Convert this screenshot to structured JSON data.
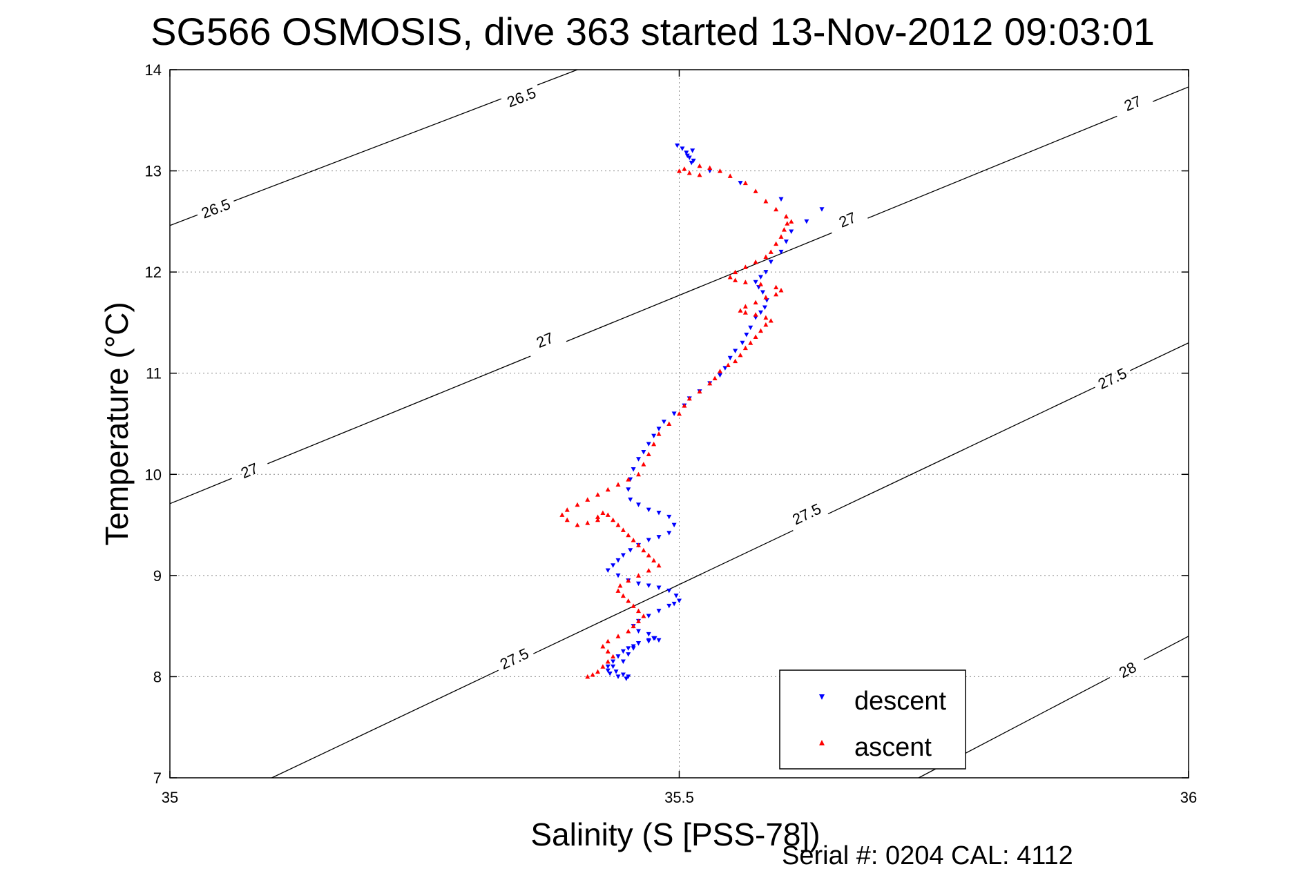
{
  "chart_data": {
    "type": "scatter",
    "title": "SG566 OSMOSIS, dive 363 started 13-Nov-2012 09:03:01",
    "xlabel": "Salinity (S [PSS-78])",
    "ylabel": "Temperature (°C)",
    "xlim": [
      35,
      36
    ],
    "ylim": [
      7,
      14
    ],
    "x_ticks": [
      35,
      35.5,
      36
    ],
    "x_tick_labels": [
      "35",
      "35.5",
      "36"
    ],
    "y_ticks": [
      7,
      8,
      9,
      10,
      11,
      12,
      13,
      14
    ],
    "y_tick_labels": [
      "7",
      "8",
      "9",
      "10",
      "11",
      "12",
      "13",
      "14"
    ],
    "grid": true,
    "legend_position": "bottom-right",
    "contour_colors": "#000000",
    "density_contours": [
      {
        "level": "26.5",
        "points": [
          [
            35.0,
            12.46
          ],
          [
            35.4,
            14.0
          ]
        ],
        "label_positions": [
          [
            35.045,
            12.63
          ],
          [
            35.345,
            13.73
          ]
        ]
      },
      {
        "level": "27",
        "points": [
          [
            35.0,
            9.71
          ],
          [
            36.0,
            13.83
          ]
        ],
        "label_positions": [
          [
            35.078,
            10.04
          ],
          [
            35.368,
            11.33
          ],
          [
            35.665,
            12.52
          ],
          [
            35.945,
            13.67
          ]
        ]
      },
      {
        "level": "27.5",
        "points": [
          [
            35.1,
            7.0
          ],
          [
            36.0,
            11.3
          ]
        ],
        "label_positions": [
          [
            35.338,
            8.18
          ],
          [
            35.625,
            9.61
          ],
          [
            35.925,
            10.95
          ]
        ]
      },
      {
        "level": "28",
        "points": [
          [
            35.735,
            7.0
          ],
          [
            36.0,
            8.4
          ]
        ],
        "label_positions": [
          [
            35.94,
            8.07
          ]
        ]
      }
    ],
    "series": [
      {
        "name": "descent",
        "color": "#0000ff",
        "marker": "triangle-down",
        "x": [
          35.498,
          35.503,
          35.507,
          35.51,
          35.512,
          35.514,
          35.513,
          35.508,
          35.53,
          35.56,
          35.6,
          35.64,
          35.625,
          35.61,
          35.605,
          35.6,
          35.59,
          35.585,
          35.58,
          35.575,
          35.578,
          35.582,
          35.586,
          35.584,
          35.58,
          35.575,
          35.57,
          35.566,
          35.562,
          35.555,
          35.55,
          35.545,
          35.54,
          35.53,
          35.52,
          35.51,
          35.505,
          35.495,
          35.485,
          35.48,
          35.475,
          35.47,
          35.465,
          35.46,
          35.455,
          35.452,
          35.45,
          35.452,
          35.46,
          35.47,
          35.48,
          35.49,
          35.495,
          35.49,
          35.48,
          35.47,
          35.46,
          35.452,
          35.445,
          35.44,
          35.435,
          35.43,
          35.44,
          35.45,
          35.46,
          35.47,
          35.48,
          35.49,
          35.497,
          35.5,
          35.495,
          35.49,
          35.48,
          35.47,
          35.46,
          35.455,
          35.46,
          35.47,
          35.475,
          35.47,
          35.46,
          35.455,
          35.45,
          35.445,
          35.44,
          35.435,
          35.43,
          35.438,
          35.445,
          35.45,
          35.448,
          35.44,
          35.432,
          35.43,
          35.435,
          35.445,
          35.45,
          35.455,
          35.46,
          35.47,
          35.476,
          35.48
        ],
        "y": [
          13.25,
          13.22,
          13.18,
          13.13,
          13.08,
          13.1,
          13.2,
          13.15,
          13.0,
          12.88,
          12.72,
          12.62,
          12.5,
          12.4,
          12.3,
          12.2,
          12.1,
          12.0,
          11.95,
          11.9,
          11.85,
          11.8,
          11.72,
          11.65,
          11.6,
          11.55,
          11.45,
          11.38,
          11.3,
          11.22,
          11.15,
          11.05,
          10.98,
          10.9,
          10.82,
          10.75,
          10.68,
          10.6,
          10.52,
          10.45,
          10.38,
          10.3,
          10.22,
          10.15,
          10.05,
          9.95,
          9.85,
          9.75,
          9.7,
          9.65,
          9.62,
          9.58,
          9.5,
          9.42,
          9.38,
          9.35,
          9.3,
          9.25,
          9.2,
          9.15,
          9.1,
          9.05,
          9.0,
          8.95,
          8.92,
          8.9,
          8.88,
          8.85,
          8.8,
          8.75,
          8.72,
          8.7,
          8.65,
          8.6,
          8.55,
          8.5,
          8.45,
          8.42,
          8.38,
          8.35,
          8.33,
          8.3,
          8.28,
          8.25,
          8.2,
          8.15,
          8.1,
          8.05,
          8.02,
          8.0,
          7.98,
          8.0,
          8.03,
          8.06,
          8.1,
          8.15,
          8.22,
          8.28,
          8.33,
          8.36,
          8.38,
          8.36
        ]
      },
      {
        "name": "ascent",
        "color": "#ff0000",
        "marker": "triangle-up",
        "x": [
          35.41,
          35.415,
          35.42,
          35.425,
          35.43,
          35.435,
          35.43,
          35.425,
          35.43,
          35.44,
          35.45,
          35.455,
          35.46,
          35.465,
          35.46,
          35.455,
          35.45,
          35.445,
          35.44,
          35.442,
          35.45,
          35.46,
          35.47,
          35.48,
          35.475,
          35.47,
          35.465,
          35.46,
          35.455,
          35.45,
          35.445,
          35.44,
          35.435,
          35.43,
          35.425,
          35.42,
          35.42,
          35.41,
          35.4,
          35.39,
          35.385,
          35.39,
          35.4,
          35.41,
          35.42,
          35.43,
          35.44,
          35.45,
          35.46,
          35.465,
          35.47,
          35.475,
          35.48,
          35.49,
          35.5,
          35.505,
          35.51,
          35.52,
          35.53,
          35.535,
          35.54,
          35.548,
          35.555,
          35.56,
          35.565,
          35.57,
          35.575,
          35.58,
          35.585,
          35.59,
          35.585,
          35.575,
          35.565,
          35.56,
          35.565,
          35.575,
          35.585,
          35.595,
          35.6,
          35.595,
          35.58,
          35.565,
          35.555,
          35.55,
          35.555,
          35.565,
          35.575,
          35.585,
          35.59,
          35.595,
          35.6,
          35.603,
          35.606,
          35.61,
          35.605,
          35.595,
          35.585,
          35.575,
          35.565,
          35.55,
          35.54,
          35.53,
          35.52,
          35.505,
          35.5,
          35.51,
          35.52
        ],
        "y": [
          8.0,
          8.02,
          8.05,
          8.1,
          8.15,
          8.2,
          8.25,
          8.3,
          8.35,
          8.4,
          8.45,
          8.5,
          8.55,
          8.6,
          8.65,
          8.7,
          8.75,
          8.8,
          8.85,
          8.9,
          8.95,
          9.0,
          9.05,
          9.1,
          9.15,
          9.2,
          9.25,
          9.3,
          9.35,
          9.4,
          9.45,
          9.5,
          9.55,
          9.6,
          9.62,
          9.58,
          9.55,
          9.52,
          9.5,
          9.55,
          9.6,
          9.65,
          9.7,
          9.75,
          9.8,
          9.85,
          9.9,
          9.95,
          10.0,
          10.1,
          10.2,
          10.3,
          10.4,
          10.5,
          10.6,
          10.68,
          10.75,
          10.82,
          10.9,
          10.95,
          11.02,
          11.08,
          11.12,
          11.18,
          11.25,
          11.3,
          11.36,
          11.42,
          11.48,
          11.52,
          11.55,
          11.58,
          11.6,
          11.62,
          11.66,
          11.7,
          11.75,
          11.78,
          11.82,
          11.85,
          11.88,
          11.9,
          11.92,
          11.95,
          12.0,
          12.05,
          12.1,
          12.15,
          12.2,
          12.28,
          12.35,
          12.42,
          12.48,
          12.5,
          12.55,
          12.62,
          12.7,
          12.8,
          12.88,
          12.95,
          13.0,
          13.03,
          13.05,
          13.02,
          13.0,
          12.98,
          12.96
        ]
      }
    ]
  },
  "legend": {
    "descent_label": "descent",
    "ascent_label": "ascent"
  },
  "footer": {
    "text": "Serial #: 0204  CAL: 4112"
  }
}
